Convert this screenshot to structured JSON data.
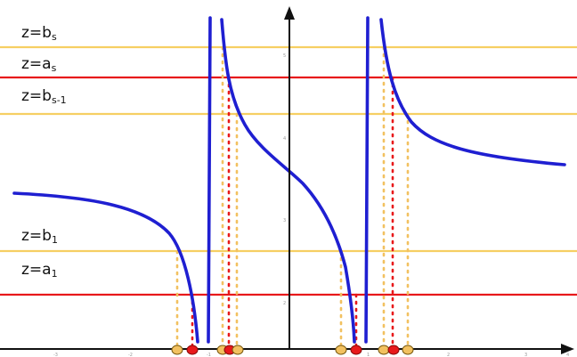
{
  "horizontal_lines": [
    {
      "id": "b_s",
      "prefix": "z=b",
      "sub": "s",
      "color": "#f6cf63"
    },
    {
      "id": "a_s",
      "prefix": "z=a",
      "sub": "s",
      "color": "#e8191b"
    },
    {
      "id": "b_s-1",
      "prefix": "z=b",
      "sub": "s-1",
      "color": "#f6cf63"
    },
    {
      "id": "b_1",
      "prefix": "z=b",
      "sub": "1",
      "color": "#f6cf63"
    },
    {
      "id": "a_1",
      "prefix": "z=a",
      "sub": "1",
      "color": "#e8191b"
    }
  ],
  "curve_color": "#1f1fd1",
  "axis_color": "#111111",
  "marker_colors": {
    "b": "#f2c160",
    "a": "#e8191b",
    "outline": "#7a5a10"
  },
  "x_ticks": [
    "-3",
    "-2",
    "-1",
    "1",
    "2",
    "3",
    "4"
  ],
  "y_ticks": [
    "2",
    "3",
    "4",
    "5"
  ]
}
